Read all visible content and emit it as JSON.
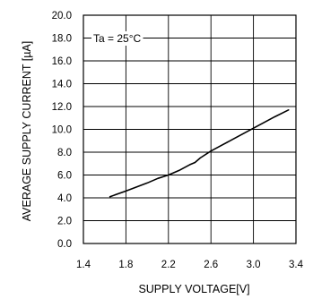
{
  "chart_data": {
    "type": "line",
    "title": "",
    "xlabel": "SUPPLY VOLTAGE[V]",
    "ylabel": "AVERAGE SUPPLY CURRENT [µA]",
    "xlim": [
      1.4,
      3.4
    ],
    "ylim": [
      0.0,
      20.0
    ],
    "xticks": [
      "1.4",
      "1.8",
      "2.2",
      "2.6",
      "3.0",
      "3.4"
    ],
    "yticks": [
      "0.0",
      "2.0",
      "4.0",
      "6.0",
      "8.0",
      "10.0",
      "12.0",
      "14.0",
      "16.0",
      "18.0",
      "20.0"
    ],
    "grid": true,
    "legend": "none",
    "annotation": "Ta = 25°C",
    "series": [
      {
        "name": "",
        "x": [
          1.65,
          1.8,
          2.0,
          2.1,
          2.2,
          2.3,
          2.4,
          2.45,
          2.5,
          2.6,
          2.7,
          2.8,
          2.9,
          3.0,
          3.1,
          3.2,
          3.33
        ],
        "y": [
          4.1,
          4.6,
          5.3,
          5.7,
          6.0,
          6.4,
          6.9,
          7.1,
          7.5,
          8.1,
          8.6,
          9.1,
          9.6,
          10.1,
          10.6,
          11.1,
          11.7
        ]
      }
    ]
  },
  "colors": {
    "line": "#000000",
    "grid": "#000000",
    "background": "#ffffff",
    "annotation_background": "#ffffff"
  }
}
